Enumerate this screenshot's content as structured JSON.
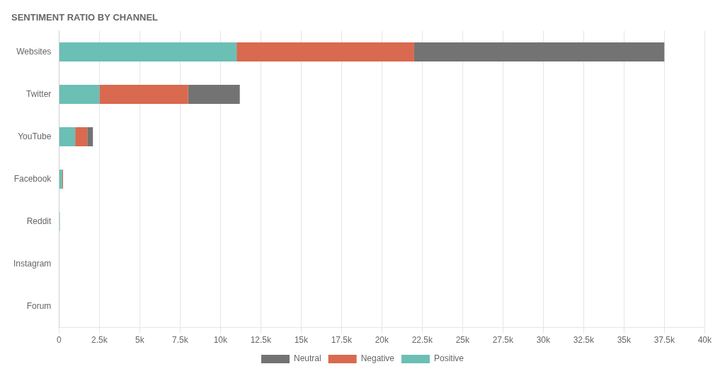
{
  "chart_data": {
    "type": "bar",
    "orientation": "horizontal",
    "stacked": true,
    "title": "SENTIMENT RATIO BY CHANNEL",
    "categories": [
      "Websites",
      "Twitter",
      "YouTube",
      "Facebook",
      "Reddit",
      "Instagram",
      "Forum"
    ],
    "series": [
      {
        "name": "Positive",
        "color": "#6bbfb5",
        "values": [
          11000,
          2500,
          1000,
          200,
          50,
          0,
          0
        ]
      },
      {
        "name": "Negative",
        "color": "#d9694f",
        "values": [
          11000,
          5500,
          750,
          50,
          0,
          0,
          0
        ]
      },
      {
        "name": "Neutral",
        "color": "#737373",
        "values": [
          15500,
          3200,
          350,
          0,
          0,
          0,
          0
        ]
      }
    ],
    "xlim": [
      0,
      40000
    ],
    "xticks": [
      0,
      {
        "value": 2500,
        "label": "2.5k"
      },
      {
        "value": 5000,
        "label": "5k"
      },
      {
        "value": 7500,
        "label": "7.5k"
      },
      {
        "value": 10000,
        "label": "10k"
      },
      {
        "value": 12500,
        "label": "12.5k"
      },
      {
        "value": 15000,
        "label": "15k"
      },
      {
        "value": 17500,
        "label": "17.5k"
      },
      {
        "value": 20000,
        "label": "20k"
      },
      {
        "value": 22500,
        "label": "22.5k"
      },
      {
        "value": 25000,
        "label": "25k"
      },
      {
        "value": 27500,
        "label": "27.5k"
      },
      {
        "value": 30000,
        "label": "30k"
      },
      {
        "value": 32500,
        "label": "32.5k"
      },
      {
        "value": 35000,
        "label": "35k"
      },
      {
        "value": 37500,
        "label": "37.5k"
      },
      {
        "value": 40000,
        "label": "40k"
      }
    ],
    "grid": true,
    "legend": "bottom"
  }
}
